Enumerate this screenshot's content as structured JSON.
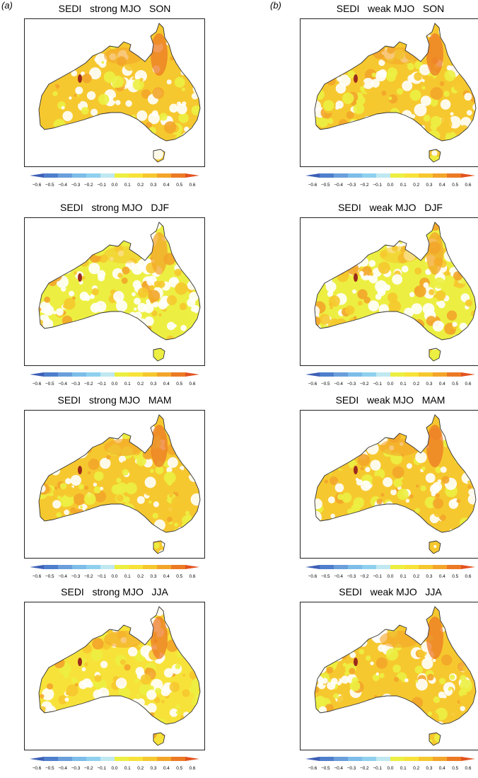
{
  "column_labels": [
    "(a)",
    "(b)"
  ],
  "colorbar": {
    "ticks": [
      "−0.6",
      "−0.5",
      "−0.4",
      "−0.3",
      "−0.2",
      "−0.1",
      "0.0",
      "0.1",
      "0.2",
      "0.3",
      "0.4",
      "0.5",
      "0.6"
    ],
    "colors": [
      "#3d5fb5",
      "#4f7fcc",
      "#6a9fdc",
      "#7dbde9",
      "#8fd0ef",
      "#bfe8f1",
      "#ecef42",
      "#f7e23a",
      "#f6c82f",
      "#f3a52a",
      "#ec7a25",
      "#e2521f"
    ]
  },
  "panels": [
    {
      "column": "a",
      "title": "SEDI   strong MJO   SON",
      "level": 0.24
    },
    {
      "column": "b",
      "title": "SEDI   weak MJO   SON",
      "level": 0.2
    },
    {
      "column": "a",
      "title": "SEDI   strong MJO   DJF",
      "level": 0.1
    },
    {
      "column": "b",
      "title": "SEDI   weak MJO   DJF",
      "level": 0.1
    },
    {
      "column": "a",
      "title": "SEDI   strong MJO   MAM",
      "level": 0.22
    },
    {
      "column": "b",
      "title": "SEDI   weak MJO   MAM",
      "level": 0.22
    },
    {
      "column": "a",
      "title": "SEDI   strong MJO   JJA",
      "level": 0.18
    },
    {
      "column": "b",
      "title": "SEDI   weak MJO   JJA",
      "level": 0.2
    }
  ]
}
